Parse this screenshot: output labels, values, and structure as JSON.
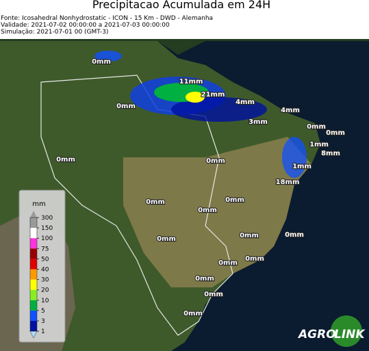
{
  "header": {
    "title": "Precipitacao Acumulada em 24H",
    "lines": [
      "Fonte: Icosahedral Nonhydrostatic - ICON - 15 Km - DWD - Alemanha",
      "Validade: 2021-07-02 00:00:00 a 2021-07-03 00:00:00",
      "Simulação: 2021-07-01 00 (GMT-3)"
    ]
  },
  "legend": {
    "unit": "mm",
    "ticks": [
      300,
      150,
      100,
      75,
      50,
      40,
      30,
      20,
      10,
      5,
      3,
      1
    ],
    "colors": [
      "#9a9a9a",
      "#ffffff",
      "#ff33dd",
      "#990000",
      "#e00000",
      "#ff9900",
      "#ffff00",
      "#88ee22",
      "#00b040",
      "#1050ff",
      "#0010a0"
    ],
    "top_color": "#9a9a9a",
    "bottom_color": "#aaddff"
  },
  "map_labels": [
    "0mm",
    "11mm",
    "21mm",
    "0mm",
    "4mm",
    "4mm",
    "3mm",
    "0mm",
    "0mm",
    "1mm",
    "8mm",
    "0mm",
    "0mm",
    "1mm",
    "18mm",
    "0mm",
    "0mm",
    "0mm",
    "0mm",
    "0mm",
    "0mm",
    "0mm",
    "0mm",
    "0mm",
    "0mm",
    "0mm"
  ],
  "logo": {
    "left": "AGRO",
    "right": "LINK"
  }
}
